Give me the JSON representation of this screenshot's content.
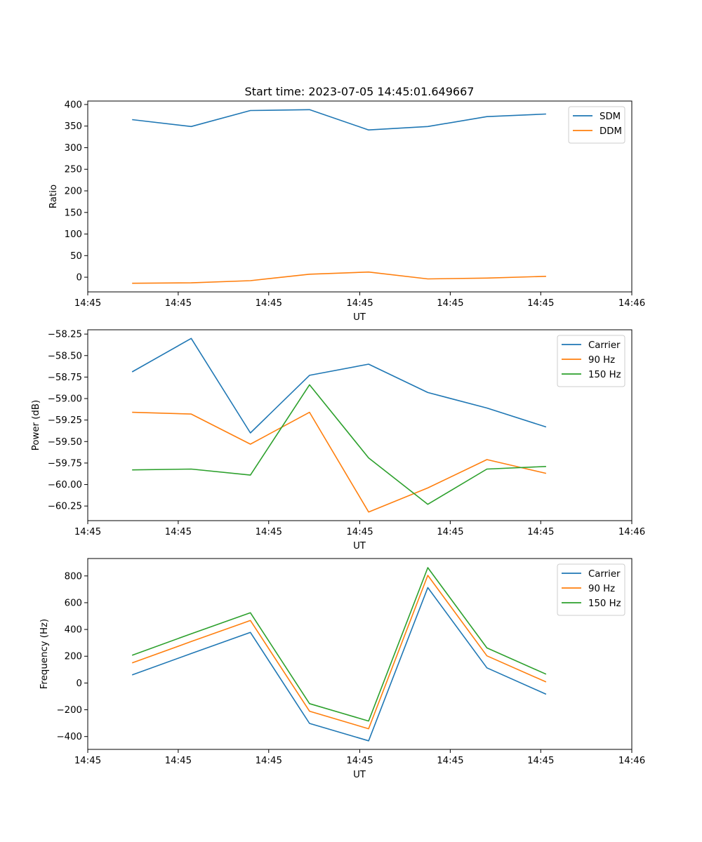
{
  "chart_data": [
    {
      "type": "line",
      "id": "ratio",
      "title": "Start time: 2023-07-05 14:45:01.649667",
      "xlabel": "UT",
      "ylabel": "Ratio",
      "x": [
        0,
        1,
        2,
        3,
        4,
        5,
        6,
        7
      ],
      "xlim": [
        -0.75,
        8.45
      ],
      "xticks": [
        {
          "pos": -0.75,
          "label": "14:45"
        },
        {
          "pos": 0.78,
          "label": "14:45"
        },
        {
          "pos": 2.31,
          "label": "14:45"
        },
        {
          "pos": 3.85,
          "label": "14:45"
        },
        {
          "pos": 5.38,
          "label": "14:45"
        },
        {
          "pos": 6.91,
          "label": "14:45"
        },
        {
          "pos": 8.45,
          "label": "14:46"
        }
      ],
      "ylim": [
        -34,
        408
      ],
      "yticks": [
        0,
        50,
        100,
        150,
        200,
        250,
        300,
        350,
        400
      ],
      "ytick_labels": [
        "0",
        "50",
        "100",
        "150",
        "200",
        "250",
        "300",
        "350",
        "400"
      ],
      "series": [
        {
          "name": "SDM",
          "color": "#1f77b4",
          "values": [
            365,
            349,
            386,
            388,
            341,
            349,
            372,
            378
          ]
        },
        {
          "name": "DDM",
          "color": "#ff7f0e",
          "values": [
            -14,
            -13,
            -8,
            7,
            12,
            -4,
            -2,
            2
          ]
        }
      ],
      "legend": "top-right"
    },
    {
      "type": "line",
      "id": "power",
      "title": "",
      "xlabel": "UT",
      "ylabel": "Power (dB)",
      "x": [
        0,
        1,
        2,
        3,
        4,
        5,
        6,
        7
      ],
      "xlim": [
        -0.75,
        8.45
      ],
      "xticks": [
        {
          "pos": -0.75,
          "label": "14:45"
        },
        {
          "pos": 0.78,
          "label": "14:45"
        },
        {
          "pos": 2.31,
          "label": "14:45"
        },
        {
          "pos": 3.85,
          "label": "14:45"
        },
        {
          "pos": 5.38,
          "label": "14:45"
        },
        {
          "pos": 6.91,
          "label": "14:45"
        },
        {
          "pos": 8.45,
          "label": "14:46"
        }
      ],
      "ylim": [
        -60.42,
        -58.2
      ],
      "yticks": [
        -58.25,
        -58.5,
        -58.75,
        -59.0,
        -59.25,
        -59.5,
        -59.75,
        -60.0,
        -60.25
      ],
      "ytick_labels": [
        "−58.25",
        "−58.50",
        "−58.75",
        "−59.00",
        "−59.25",
        "−59.50",
        "−59.75",
        "−60.00",
        "−60.25"
      ],
      "series": [
        {
          "name": "Carrier",
          "color": "#1f77b4",
          "values": [
            -58.69,
            -58.3,
            -59.4,
            -58.73,
            -58.6,
            -58.93,
            -59.11,
            -59.33
          ]
        },
        {
          "name": "90 Hz",
          "color": "#ff7f0e",
          "values": [
            -59.16,
            -59.18,
            -59.53,
            -59.16,
            -60.32,
            -60.04,
            -59.71,
            -59.87
          ]
        },
        {
          "name": "150 Hz",
          "color": "#2ca02c",
          "values": [
            -59.83,
            -59.82,
            -59.89,
            -58.84,
            -59.69,
            -60.23,
            -59.82,
            -59.79
          ]
        }
      ],
      "legend": "top-right"
    },
    {
      "type": "line",
      "id": "frequency",
      "title": "",
      "xlabel": "UT",
      "ylabel": "Frequency (Hz)",
      "x": [
        0,
        1,
        2,
        3,
        4,
        5,
        6,
        7
      ],
      "xlim": [
        -0.75,
        8.45
      ],
      "xticks": [
        {
          "pos": -0.75,
          "label": "14:45"
        },
        {
          "pos": 0.78,
          "label": "14:45"
        },
        {
          "pos": 2.31,
          "label": "14:45"
        },
        {
          "pos": 3.85,
          "label": "14:45"
        },
        {
          "pos": 5.38,
          "label": "14:45"
        },
        {
          "pos": 6.91,
          "label": "14:45"
        },
        {
          "pos": 8.45,
          "label": "14:46"
        }
      ],
      "ylim": [
        -496,
        930
      ],
      "yticks": [
        800,
        600,
        400,
        200,
        0,
        -200,
        -400
      ],
      "ytick_labels": [
        "800",
        "600",
        "400",
        "200",
        "0",
        "−200",
        "−400"
      ],
      "series": [
        {
          "name": "Carrier",
          "color": "#1f77b4",
          "values": [
            60,
            220,
            378,
            -302,
            -432,
            713,
            113,
            -84
          ]
        },
        {
          "name": "90 Hz",
          "color": "#ff7f0e",
          "values": [
            150,
            310,
            467,
            -211,
            -342,
            804,
            203,
            8
          ]
        },
        {
          "name": "150 Hz",
          "color": "#2ca02c",
          "values": [
            207,
            368,
            525,
            -154,
            -284,
            862,
            262,
            66
          ]
        }
      ],
      "legend": "top-right"
    }
  ]
}
